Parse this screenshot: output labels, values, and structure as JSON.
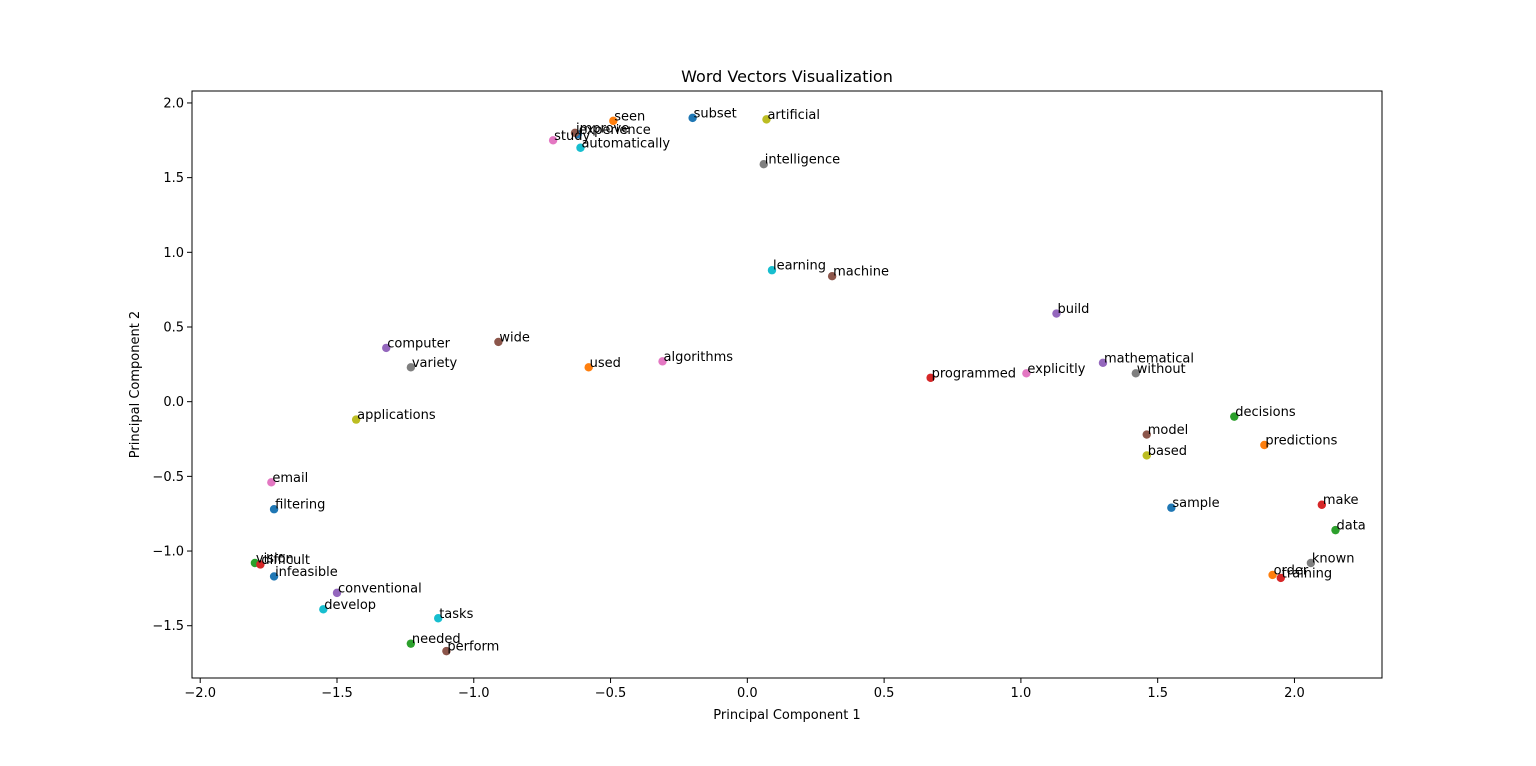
{
  "chart_data": {
    "type": "scatter",
    "title": "Word Vectors Visualization",
    "xlabel": "Principal Component 1",
    "ylabel": "Principal Component 2",
    "xlim": [
      -2.03,
      2.32
    ],
    "ylim": [
      -1.85,
      2.08
    ],
    "x_ticks": [
      -2.0,
      -1.5,
      -1.0,
      -0.5,
      0.0,
      0.5,
      1.0,
      1.5,
      2.0
    ],
    "y_ticks": [
      -1.5,
      -1.0,
      -0.5,
      0.0,
      0.5,
      1.0,
      1.5,
      2.0
    ],
    "x_tick_labels": [
      "−2.0",
      "−1.5",
      "−1.0",
      "−0.5",
      "0.0",
      "0.5",
      "1.0",
      "1.5",
      "2.0"
    ],
    "y_tick_labels": [
      "−1.5",
      "−1.0",
      "−0.5",
      "0.0",
      "0.5",
      "1.0",
      "1.5",
      "2.0"
    ],
    "grid": false,
    "legend": "none",
    "palette": [
      "#1f77b4",
      "#ff7f0e",
      "#2ca02c",
      "#d62728",
      "#9467bd",
      "#8c564b",
      "#e377c2",
      "#7f7f7f",
      "#bcbd22",
      "#17becf"
    ],
    "points": [
      {
        "label": "subset",
        "x": -0.2,
        "y": 1.9,
        "color": "#1f77b4"
      },
      {
        "label": "seen",
        "x": -0.49,
        "y": 1.88,
        "color": "#ff7f0e"
      },
      {
        "label": "experience",
        "x": -0.62,
        "y": 1.79,
        "color": "#1f77b4"
      },
      {
        "label": "improve",
        "x": -0.63,
        "y": 1.8,
        "color": "#8c564b"
      },
      {
        "label": "study",
        "x": -0.71,
        "y": 1.75,
        "color": "#e377c2"
      },
      {
        "label": "automatically",
        "x": -0.61,
        "y": 1.7,
        "color": "#17becf"
      },
      {
        "label": "artificial",
        "x": 0.07,
        "y": 1.89,
        "color": "#bcbd22"
      },
      {
        "label": "intelligence",
        "x": 0.06,
        "y": 1.59,
        "color": "#7f7f7f"
      },
      {
        "label": "learning",
        "x": 0.09,
        "y": 0.88,
        "color": "#17becf"
      },
      {
        "label": "machine",
        "x": 0.31,
        "y": 0.84,
        "color": "#8c564b"
      },
      {
        "label": "build",
        "x": 1.13,
        "y": 0.59,
        "color": "#9467bd"
      },
      {
        "label": "wide",
        "x": -0.91,
        "y": 0.4,
        "color": "#8c564b"
      },
      {
        "label": "computer",
        "x": -1.32,
        "y": 0.36,
        "color": "#9467bd"
      },
      {
        "label": "algorithms",
        "x": -0.31,
        "y": 0.27,
        "color": "#e377c2"
      },
      {
        "label": "used",
        "x": -0.58,
        "y": 0.23,
        "color": "#ff7f0e"
      },
      {
        "label": "variety",
        "x": -1.23,
        "y": 0.23,
        "color": "#7f7f7f"
      },
      {
        "label": "mathematical",
        "x": 1.3,
        "y": 0.26,
        "color": "#9467bd"
      },
      {
        "label": "explicitly",
        "x": 1.02,
        "y": 0.19,
        "color": "#e377c2"
      },
      {
        "label": "without",
        "x": 1.42,
        "y": 0.19,
        "color": "#7f7f7f"
      },
      {
        "label": "programmed",
        "x": 0.67,
        "y": 0.16,
        "color": "#d62728"
      },
      {
        "label": "applications",
        "x": -1.43,
        "y": -0.12,
        "color": "#bcbd22"
      },
      {
        "label": "decisions",
        "x": 1.78,
        "y": -0.1,
        "color": "#2ca02c"
      },
      {
        "label": "model",
        "x": 1.46,
        "y": -0.22,
        "color": "#8c564b"
      },
      {
        "label": "predictions",
        "x": 1.89,
        "y": -0.29,
        "color": "#ff7f0e"
      },
      {
        "label": "based",
        "x": 1.46,
        "y": -0.36,
        "color": "#bcbd22"
      },
      {
        "label": "email",
        "x": -1.74,
        "y": -0.54,
        "color": "#e377c2"
      },
      {
        "label": "filtering",
        "x": -1.73,
        "y": -0.72,
        "color": "#1f77b4"
      },
      {
        "label": "sample",
        "x": 1.55,
        "y": -0.71,
        "color": "#1f77b4"
      },
      {
        "label": "make",
        "x": 2.1,
        "y": -0.69,
        "color": "#d62728"
      },
      {
        "label": "data",
        "x": 2.15,
        "y": -0.86,
        "color": "#2ca02c"
      },
      {
        "label": "vision",
        "x": -1.8,
        "y": -1.08,
        "color": "#2ca02c"
      },
      {
        "label": "difficult",
        "x": -1.78,
        "y": -1.09,
        "color": "#d62728"
      },
      {
        "label": "infeasible",
        "x": -1.73,
        "y": -1.17,
        "color": "#1f77b4"
      },
      {
        "label": "known",
        "x": 2.06,
        "y": -1.08,
        "color": "#7f7f7f"
      },
      {
        "label": "order",
        "x": 1.92,
        "y": -1.16,
        "color": "#ff7f0e"
      },
      {
        "label": "training",
        "x": 1.95,
        "y": -1.18,
        "color": "#d62728"
      },
      {
        "label": "conventional",
        "x": -1.5,
        "y": -1.28,
        "color": "#9467bd"
      },
      {
        "label": "develop",
        "x": -1.55,
        "y": -1.39,
        "color": "#17becf"
      },
      {
        "label": "tasks",
        "x": -1.13,
        "y": -1.45,
        "color": "#17becf"
      },
      {
        "label": "needed",
        "x": -1.23,
        "y": -1.62,
        "color": "#2ca02c"
      },
      {
        "label": "perform",
        "x": -1.1,
        "y": -1.67,
        "color": "#8c564b"
      }
    ]
  }
}
